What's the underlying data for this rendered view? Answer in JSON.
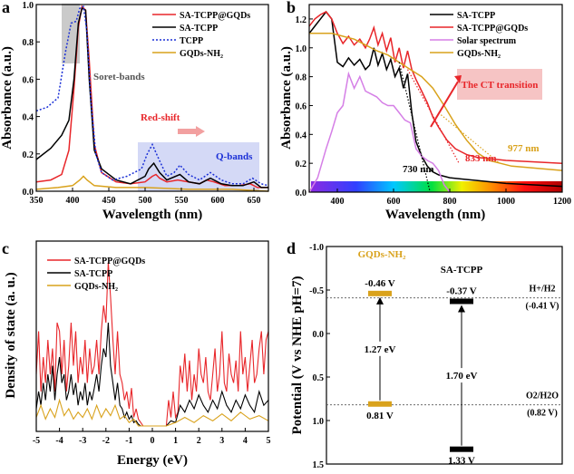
{
  "colors": {
    "red": "#e8262a",
    "black": "#000000",
    "blue": "#1a2fd6",
    "gold": "#d9a21c",
    "violet": "#d57fe6",
    "ctbox": "#f6c4c4",
    "grey": "#bdbdbd",
    "qband": "#c9d0f4"
  },
  "chart_data": [
    {
      "panel": "a",
      "type": "line",
      "xlabel": "Wavelength (nm)",
      "ylabel": "Absorbance (a.u.)",
      "xlim": [
        350,
        670
      ],
      "ylim": [
        0,
        1.0
      ],
      "xticks": [
        "350",
        "400",
        "450",
        "500",
        "550",
        "600",
        "650"
      ],
      "yticks": [
        "0.0",
        "0.2",
        "0.4",
        "0.6",
        "0.8",
        "1.0"
      ],
      "annotations": {
        "soret": "Soret-bands",
        "redshift": "Red-shift",
        "qbands": "Q-bands"
      },
      "series": [
        {
          "name": "SA-TCPP@GQDs",
          "color": "red",
          "x": [
            350,
            370,
            385,
            395,
            402,
            408,
            413,
            418,
            423,
            430,
            440,
            460,
            480,
            500,
            510,
            515,
            520,
            530,
            545,
            560,
            575,
            585,
            595,
            610,
            630,
            645,
            655,
            670
          ],
          "y": [
            0.05,
            0.06,
            0.09,
            0.22,
            0.55,
            0.88,
            0.99,
            0.97,
            0.7,
            0.25,
            0.1,
            0.05,
            0.04,
            0.05,
            0.08,
            0.09,
            0.07,
            0.05,
            0.06,
            0.05,
            0.04,
            0.06,
            0.05,
            0.03,
            0.03,
            0.04,
            0.02,
            0.02
          ]
        },
        {
          "name": "SA-TCPP",
          "color": "black",
          "x": [
            350,
            370,
            385,
            395,
            402,
            408,
            413,
            418,
            423,
            430,
            440,
            460,
            480,
            500,
            505,
            512,
            520,
            530,
            548,
            560,
            575,
            590,
            605,
            620,
            635,
            650,
            660,
            670
          ],
          "y": [
            0.17,
            0.23,
            0.3,
            0.38,
            0.6,
            0.9,
            0.98,
            0.97,
            0.6,
            0.22,
            0.12,
            0.06,
            0.04,
            0.08,
            0.12,
            0.15,
            0.1,
            0.06,
            0.09,
            0.05,
            0.04,
            0.07,
            0.04,
            0.03,
            0.03,
            0.05,
            0.02,
            0.02
          ]
        },
        {
          "name": "TCPP",
          "color": "blue",
          "dash": true,
          "x": [
            350,
            365,
            380,
            390,
            398,
            405,
            410,
            415,
            420,
            425,
            432,
            440,
            455,
            475,
            495,
            503,
            510,
            518,
            530,
            540,
            548,
            560,
            575,
            590,
            605,
            620,
            635,
            648,
            660,
            670
          ],
          "y": [
            0.43,
            0.45,
            0.5,
            0.74,
            0.9,
            0.91,
            0.98,
            0.99,
            0.85,
            0.5,
            0.2,
            0.1,
            0.06,
            0.08,
            0.12,
            0.2,
            0.25,
            0.18,
            0.08,
            0.1,
            0.14,
            0.09,
            0.06,
            0.1,
            0.06,
            0.04,
            0.04,
            0.07,
            0.04,
            0.03
          ]
        },
        {
          "name": "GQDs-NH₂",
          "color": "gold",
          "x": [
            350,
            380,
            400,
            410,
            415,
            420,
            430,
            460,
            500,
            560,
            620,
            670
          ],
          "y": [
            0.01,
            0.02,
            0.03,
            0.06,
            0.08,
            0.06,
            0.03,
            0.02,
            0.02,
            0.01,
            0.01,
            0.0
          ]
        }
      ]
    },
    {
      "panel": "b",
      "type": "line",
      "xlabel": "Wavelength (nm)",
      "ylabel": "Absorbance (a.u.)",
      "xlim": [
        300,
        1200
      ],
      "ylim": [
        0,
        1.3
      ],
      "xticks": [
        "400",
        "600",
        "800",
        "1000",
        "1200"
      ],
      "yticks": [
        "0.0",
        "0.2",
        "0.4",
        "0.6",
        "0.8",
        "1.0",
        "1.2"
      ],
      "annotations": {
        "ct": "The CT transition",
        "nm977": "977 nm",
        "nm833": "833 nm",
        "nm730": "730 nm"
      },
      "series": [
        {
          "name": "SA-TCPP",
          "color": "black",
          "x": [
            300,
            320,
            340,
            360,
            380,
            400,
            420,
            440,
            460,
            480,
            500,
            515,
            530,
            545,
            560,
            575,
            590,
            605,
            620,
            635,
            650,
            665,
            680,
            700,
            720,
            740,
            760,
            800,
            850,
            900,
            1000,
            1100,
            1200
          ],
          "y": [
            1.1,
            1.15,
            1.2,
            1.25,
            1.2,
            0.9,
            0.87,
            0.93,
            0.88,
            0.92,
            0.85,
            0.88,
            1.0,
            0.88,
            0.96,
            0.85,
            0.92,
            0.8,
            0.86,
            0.72,
            0.82,
            0.55,
            0.35,
            0.25,
            0.18,
            0.14,
            0.12,
            0.1,
            0.09,
            0.08,
            0.06,
            0.05,
            0.04
          ]
        },
        {
          "name": "SA-TCPP@GQDs",
          "color": "red",
          "x": [
            300,
            320,
            340,
            360,
            380,
            400,
            420,
            440,
            460,
            480,
            500,
            515,
            530,
            545,
            560,
            575,
            590,
            605,
            620,
            635,
            650,
            665,
            680,
            700,
            720,
            740,
            760,
            790,
            820,
            860,
            900,
            1000,
            1100,
            1200
          ],
          "y": [
            1.15,
            1.2,
            1.23,
            1.25,
            1.2,
            1.1,
            1.03,
            1.08,
            1.02,
            1.06,
            1.0,
            1.06,
            1.14,
            1.02,
            1.1,
            0.98,
            1.07,
            0.9,
            1.0,
            0.86,
            0.98,
            0.85,
            0.78,
            0.7,
            0.62,
            0.52,
            0.45,
            0.36,
            0.3,
            0.26,
            0.24,
            0.22,
            0.21,
            0.2
          ]
        },
        {
          "name": "Solar spectrum",
          "color": "violet",
          "x": [
            300,
            330,
            360,
            380,
            400,
            420,
            440,
            460,
            480,
            500,
            520,
            540,
            560,
            580,
            600,
            620,
            640,
            660,
            680,
            700,
            720,
            740,
            760,
            780,
            800
          ],
          "y": [
            0.0,
            0.1,
            0.3,
            0.42,
            0.55,
            0.6,
            0.82,
            0.72,
            0.8,
            0.7,
            0.68,
            0.66,
            0.62,
            0.6,
            0.6,
            0.55,
            0.5,
            0.48,
            0.3,
            0.25,
            0.22,
            0.2,
            0.15,
            0.05,
            0.0
          ]
        },
        {
          "name": "GQDs-NH₂",
          "color": "gold",
          "x": [
            300,
            340,
            380,
            420,
            460,
            500,
            540,
            580,
            620,
            660,
            700,
            740,
            780,
            820,
            860,
            900,
            940,
            980,
            1020,
            1080,
            1140,
            1200
          ],
          "y": [
            1.1,
            1.1,
            1.1,
            1.08,
            1.06,
            1.02,
            0.98,
            0.95,
            0.9,
            0.85,
            0.8,
            0.72,
            0.6,
            0.47,
            0.36,
            0.27,
            0.22,
            0.2,
            0.18,
            0.17,
            0.16,
            0.15
          ]
        }
      ]
    },
    {
      "panel": "c",
      "type": "line",
      "xlabel": "Energy (eV)",
      "ylabel": "Density of state (a. u.)",
      "xlim": [
        -5,
        5
      ],
      "xticks": [
        "-5",
        "-4",
        "-3",
        "-2",
        "-1",
        "0",
        "1",
        "2",
        "3",
        "4",
        "5"
      ],
      "series": [
        {
          "name": "SA-TCPP@GQDs",
          "color": "red",
          "x": [
            -5,
            -4.9,
            -4.8,
            -4.7,
            -4.6,
            -4.5,
            -4.4,
            -4.3,
            -4.2,
            -4.1,
            -4.0,
            -3.9,
            -3.8,
            -3.7,
            -3.6,
            -3.5,
            -3.4,
            -3.3,
            -3.2,
            -3.1,
            -3.0,
            -2.9,
            -2.8,
            -2.7,
            -2.6,
            -2.5,
            -2.4,
            -2.3,
            -2.2,
            -2.1,
            -2.0,
            -1.9,
            -1.8,
            -1.7,
            -1.6,
            -1.5,
            -1.4,
            -1.3,
            -1.2,
            -1.1,
            -1.0,
            -0.9,
            -0.8,
            -0.7,
            -0.6,
            -0.5,
            -0.4,
            -0.3,
            -0.2,
            -0.1,
            0.0,
            0.2,
            0.4,
            0.6,
            0.7,
            0.8,
            0.9,
            1.0,
            1.1,
            1.2,
            1.3,
            1.4,
            1.5,
            1.6,
            1.7,
            1.8,
            1.9,
            2.0,
            2.1,
            2.2,
            2.3,
            2.4,
            2.5,
            2.6,
            2.7,
            2.8,
            2.9,
            3.0,
            3.1,
            3.2,
            3.3,
            3.4,
            3.5,
            3.6,
            3.7,
            3.8,
            3.9,
            4.0,
            4.1,
            4.2,
            4.3,
            4.4,
            4.5,
            4.6,
            4.7,
            4.8,
            4.9,
            5.0
          ],
          "y": [
            0.3,
            0.55,
            0.2,
            0.4,
            0.25,
            0.5,
            0.3,
            0.45,
            0.2,
            0.6,
            0.55,
            0.3,
            0.5,
            0.2,
            0.35,
            0.6,
            0.35,
            0.55,
            0.25,
            0.4,
            0.3,
            0.5,
            0.25,
            0.45,
            0.3,
            0.35,
            0.5,
            0.3,
            0.55,
            0.7,
            0.6,
            0.95,
            0.75,
            0.5,
            0.3,
            0.55,
            0.3,
            0.25,
            0.15,
            0.2,
            0.1,
            0.22,
            0.05,
            0.1,
            0.04,
            0.02,
            0.0,
            0.0,
            0.0,
            0.0,
            0.0,
            0.0,
            0.0,
            0.0,
            0.15,
            0.05,
            0.2,
            0.05,
            0.08,
            0.35,
            0.25,
            0.42,
            0.2,
            0.38,
            0.15,
            0.3,
            0.2,
            0.45,
            0.3,
            0.25,
            0.4,
            0.2,
            0.15,
            0.3,
            0.45,
            0.2,
            0.3,
            0.55,
            0.25,
            0.2,
            0.42,
            0.3,
            0.25,
            0.38,
            0.2,
            0.55,
            0.3,
            0.4,
            0.2,
            0.35,
            0.5,
            0.25,
            0.3,
            0.45,
            0.55,
            0.3,
            0.5,
            0.55
          ]
        },
        {
          "name": "SA-TCPP",
          "color": "black",
          "x": [
            -5,
            -4.9,
            -4.8,
            -4.7,
            -4.6,
            -4.5,
            -4.4,
            -4.3,
            -4.2,
            -4.1,
            -4.0,
            -3.9,
            -3.8,
            -3.7,
            -3.6,
            -3.5,
            -3.4,
            -3.3,
            -3.2,
            -3.1,
            -3.0,
            -2.9,
            -2.8,
            -2.7,
            -2.6,
            -2.5,
            -2.4,
            -2.3,
            -2.2,
            -2.1,
            -2.0,
            -1.9,
            -1.8,
            -1.7,
            -1.6,
            -1.5,
            -1.4,
            -1.3,
            -1.2,
            -1.1,
            -1.0,
            -0.9,
            -0.8,
            -0.7,
            -0.6,
            -0.5,
            -0.4,
            0.0,
            0.6,
            0.8,
            1.0,
            1.2,
            1.4,
            1.6,
            1.8,
            2.0,
            2.2,
            2.4,
            2.6,
            2.8,
            3.0,
            3.2,
            3.4,
            3.6,
            3.8,
            4.0,
            4.2,
            4.4,
            4.6,
            4.8,
            5.0
          ],
          "y": [
            0.1,
            0.2,
            0.12,
            0.25,
            0.15,
            0.3,
            0.2,
            0.35,
            0.15,
            0.3,
            0.4,
            0.25,
            0.3,
            0.15,
            0.2,
            0.3,
            0.18,
            0.25,
            0.12,
            0.2,
            0.15,
            0.25,
            0.12,
            0.2,
            0.15,
            0.22,
            0.3,
            0.2,
            0.35,
            0.45,
            0.4,
            0.6,
            0.35,
            0.25,
            0.15,
            0.25,
            0.12,
            0.1,
            0.05,
            0.08,
            0.04,
            0.06,
            0.02,
            0.03,
            0.01,
            0.0,
            0.0,
            0.0,
            0.0,
            0.03,
            0.02,
            0.12,
            0.08,
            0.15,
            0.1,
            0.18,
            0.12,
            0.08,
            0.15,
            0.1,
            0.2,
            0.12,
            0.08,
            0.15,
            0.1,
            0.18,
            0.12,
            0.08,
            0.2,
            0.12,
            0.15
          ]
        },
        {
          "name": "GQDs-NH₂",
          "color": "gold",
          "x": [
            -5,
            -4.8,
            -4.6,
            -4.4,
            -4.2,
            -4.0,
            -3.8,
            -3.6,
            -3.4,
            -3.2,
            -3.0,
            -2.8,
            -2.6,
            -2.4,
            -2.2,
            -2.0,
            -1.8,
            -1.6,
            -1.4,
            -1.2,
            -1.0,
            -0.8,
            -0.6,
            0.0,
            0.6,
            1.0,
            1.4,
            1.8,
            2.2,
            2.6,
            3.0,
            3.4,
            3.8,
            4.2,
            4.6,
            5.0
          ],
          "y": [
            0.05,
            0.12,
            0.04,
            0.1,
            0.05,
            0.15,
            0.06,
            0.1,
            0.04,
            0.08,
            0.05,
            0.1,
            0.04,
            0.12,
            0.05,
            0.1,
            0.06,
            0.12,
            0.04,
            0.06,
            0.02,
            0.04,
            0.0,
            0.0,
            0.0,
            0.02,
            0.05,
            0.02,
            0.06,
            0.03,
            0.07,
            0.03,
            0.08,
            0.04,
            0.06,
            0.03
          ]
        }
      ]
    },
    {
      "panel": "d",
      "type": "band-diagram",
      "ylabel": "Potential (V vs NHE pH=7)",
      "ylim": [
        -1.0,
        1.5
      ],
      "yticks": [
        "-1.0",
        "-0.5",
        "0.0",
        "0.5",
        "1.0",
        "1.5"
      ],
      "materials": [
        {
          "name": "GQDs-NH₂",
          "cb": -0.46,
          "vb": 0.81,
          "cb_label": "-0.46 V",
          "vb_label": "0.81 V",
          "gap_label": "1.27 eV",
          "color": "gold"
        },
        {
          "name": "SA-TCPP",
          "cb": -0.37,
          "vb": 1.33,
          "cb_label": "-0.37 V",
          "vb_label": "1.33 V",
          "gap_label": "1.70 eV",
          "color": "black"
        }
      ],
      "reference_lines": [
        {
          "name": "H+/H2",
          "value": -0.41,
          "label_value": "(-0.41 V)"
        },
        {
          "name": "O2/H2O",
          "value": 0.82,
          "label_value": "(0.82 V)"
        }
      ]
    }
  ],
  "panels": {
    "a": "a",
    "b": "b",
    "c": "c",
    "d": "d"
  }
}
